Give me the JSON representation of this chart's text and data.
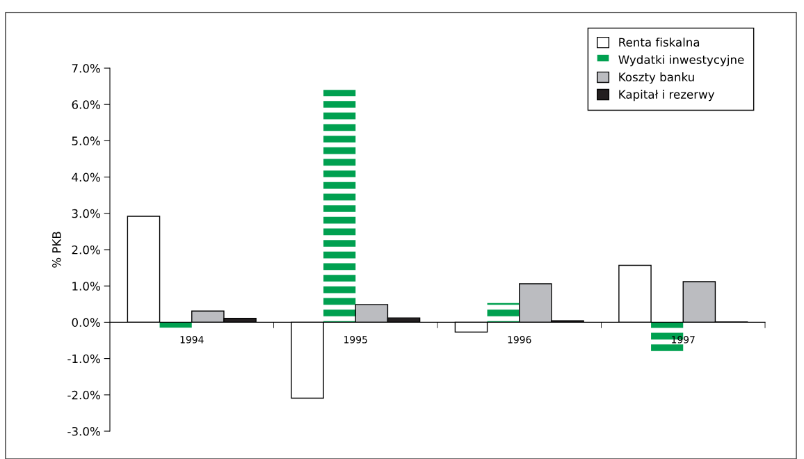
{
  "chart_data": {
    "type": "bar",
    "ylabel": "% PKB",
    "categories": [
      "1994",
      "1995",
      "1996",
      "1997"
    ],
    "series": [
      {
        "name": "Renta fiskalna",
        "color": "#ffffff",
        "values": [
          2.92,
          -2.09,
          -0.27,
          1.57
        ]
      },
      {
        "name": "Wydatki inwestycyjne",
        "color": "#00a050",
        "values": [
          -0.15,
          6.4,
          0.53,
          -0.81
        ]
      },
      {
        "name": "Koszty banku",
        "color": "#bbbcc0",
        "values": [
          0.31,
          0.49,
          1.06,
          1.12
        ]
      },
      {
        "name": "Kapitał i rezerwy",
        "color": "#231f20",
        "values": [
          0.11,
          0.12,
          0.04,
          0.01
        ]
      }
    ],
    "ylim": [
      -3,
      7
    ],
    "yticks": [
      {
        "value": -3,
        "label": "-3.0%"
      },
      {
        "value": -2,
        "label": "-2.0%"
      },
      {
        "value": -1,
        "label": "-1.0%"
      },
      {
        "value": 0,
        "label": "0.0%"
      },
      {
        "value": 1,
        "label": "1.0%"
      },
      {
        "value": 2,
        "label": "2.0%"
      },
      {
        "value": 3,
        "label": "3.0%"
      },
      {
        "value": 4,
        "label": "4.0%"
      },
      {
        "value": 5,
        "label": "5.0%"
      },
      {
        "value": 6,
        "label": "6.0%"
      },
      {
        "value": 7,
        "label": "7.0%"
      }
    ],
    "grid": false,
    "legend": "top right"
  }
}
